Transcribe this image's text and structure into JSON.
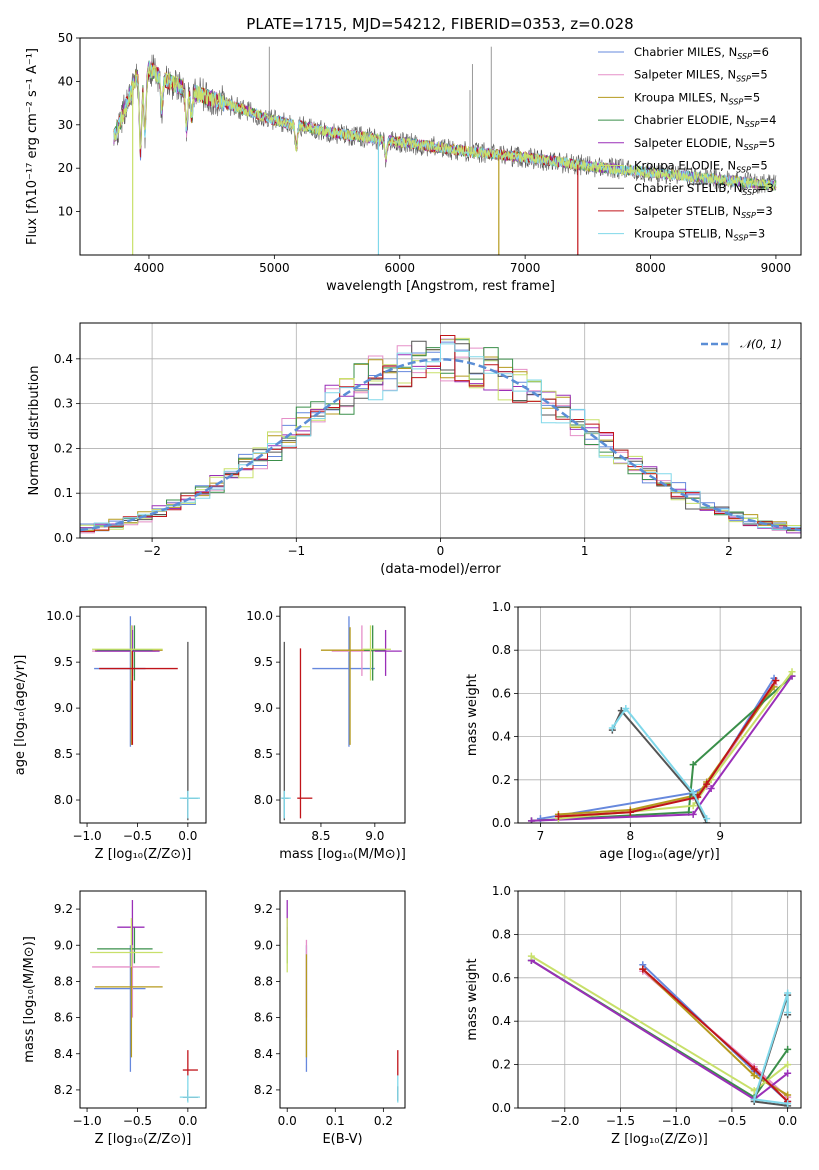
{
  "figure": {
    "title": "PLATE=1715, MJD=54212, FIBERID=0353, z=0.028"
  },
  "colors": [
    "#6688dd",
    "#e58fc8",
    "#b59a1e",
    "#3a8f4a",
    "#9a2fb8",
    "#c8e06a",
    "#555555",
    "#c0141a",
    "#80d8ea"
  ],
  "chart_data": [
    {
      "id": "spectrum",
      "type": "line",
      "title": "PLATE=1715, MJD=54212, FIBERID=0353, z=0.028",
      "xlabel": "wavelength [Angstrom, rest frame]",
      "ylabel": "Flux [fλ10⁻¹⁷ erg cm⁻² s⁻¹ A⁻¹]",
      "xlim": [
        3450,
        9200
      ],
      "ylim": [
        0,
        50
      ],
      "xticks": [
        4000,
        5000,
        6000,
        7000,
        8000,
        9000
      ],
      "yticks": [
        10,
        20,
        30,
        40,
        50
      ],
      "legend_position": "top-right",
      "continuum_x": [
        3720,
        3800,
        3900,
        4000,
        4100,
        4300,
        4500,
        4800,
        5000,
        5500,
        6000,
        6500,
        7000,
        7500,
        8000,
        8500,
        9000
      ],
      "continuum_y": [
        27,
        33,
        41,
        43,
        41,
        38,
        36,
        33,
        31,
        28,
        26,
        24,
        22.5,
        20.5,
        19,
        17.5,
        16
      ],
      "absorption_lines": [
        {
          "x": 3933,
          "depth": 18
        },
        {
          "x": 3968,
          "depth": 14
        },
        {
          "x": 4102,
          "depth": 7
        },
        {
          "x": 4300,
          "depth": 9
        },
        {
          "x": 4340,
          "depth": 6
        },
        {
          "x": 5175,
          "depth": 5
        },
        {
          "x": 5890,
          "depth": 4
        }
      ],
      "spikes": [
        {
          "x": 4960,
          "y": 48
        },
        {
          "x": 6560,
          "y": 38
        },
        {
          "x": 6580,
          "y": 44
        },
        {
          "x": 6730,
          "y": 48
        }
      ],
      "dropouts": [
        {
          "x": 3870,
          "series": 5
        },
        {
          "x": 5830,
          "series": 8
        },
        {
          "x": 6790,
          "series": 2
        },
        {
          "x": 7420,
          "series": 7
        }
      ],
      "series": [
        {
          "label": "Chabrier MILES, N",
          "ssp": "=6"
        },
        {
          "label": "Salpeter MILES, N",
          "ssp": "=5"
        },
        {
          "label": "Kroupa MILES, N",
          "ssp": "=5"
        },
        {
          "label": "Chabrier ELODIE, N",
          "ssp": "=4"
        },
        {
          "label": "Salpeter ELODIE, N",
          "ssp": "=5"
        },
        {
          "label": "Kroupa ELODIE, N",
          "ssp": "=5"
        },
        {
          "label": "Chabrier STELIB, N",
          "ssp": "=3"
        },
        {
          "label": "Salpeter STELIB, N",
          "ssp": "=3"
        },
        {
          "label": "Kroupa STELIB, N",
          "ssp": "=3"
        }
      ],
      "ssp_subscript": "SSP"
    },
    {
      "id": "residuals",
      "type": "line",
      "xlabel": "(data-model)/error",
      "ylabel": "Normed distribution",
      "xlim": [
        -2.5,
        2.5
      ],
      "ylim": [
        0,
        0.48
      ],
      "xticks": [
        -2,
        -1,
        0,
        1,
        2
      ],
      "yticks": [
        0.0,
        0.1,
        0.2,
        0.3,
        0.4
      ],
      "grid": true,
      "legend_position": "top-right",
      "gaussian_label": "𝒩(0, 1)",
      "bin_width": 0.1
    },
    {
      "id": "age-vs-Z",
      "type": "scatter",
      "xlabel": "Z [log₁₀(Z/Z⊙)]",
      "ylabel": "age  [log₁₀(age/yr)]",
      "xlim": [
        -1.07,
        0.18
      ],
      "ylim": [
        7.75,
        10.1
      ],
      "xticks": [
        -1.0,
        -0.5,
        0.0
      ],
      "yticks": [
        8.0,
        8.5,
        9.0,
        9.5,
        10.0
      ],
      "points": [
        {
          "s": 0,
          "x": -0.57,
          "y": 9.43,
          "xlo": -0.93,
          "xhi": -0.42,
          "ylo": 8.58,
          "yhi": 10.0
        },
        {
          "s": 1,
          "x": -0.55,
          "y": 9.62,
          "xlo": -0.95,
          "xhi": -0.32,
          "ylo": 9.35,
          "yhi": 9.9
        },
        {
          "s": 2,
          "x": -0.56,
          "y": 9.63,
          "xlo": -0.92,
          "xhi": -0.25,
          "ylo": 8.6,
          "yhi": 9.88
        },
        {
          "s": 3,
          "x": -0.53,
          "y": 9.63,
          "xlo": -0.9,
          "xhi": -0.35,
          "ylo": 9.3,
          "yhi": 9.9
        },
        {
          "s": 4,
          "x": -0.55,
          "y": 9.62,
          "xlo": -0.92,
          "xhi": -0.28,
          "ylo": 9.35,
          "yhi": 9.85
        },
        {
          "s": 5,
          "x": -0.56,
          "y": 9.64,
          "xlo": -0.95,
          "xhi": -0.25,
          "ylo": 9.3,
          "yhi": 9.9
        },
        {
          "s": 6,
          "x": 0.0,
          "y": 8.02,
          "xlo": -0.05,
          "xhi": 0.1,
          "ylo": 7.78,
          "yhi": 9.72
        },
        {
          "s": 7,
          "x": -0.55,
          "y": 9.43,
          "xlo": -0.88,
          "xhi": -0.1,
          "ylo": 8.6,
          "yhi": 9.62
        },
        {
          "s": 8,
          "x": 0.0,
          "y": 8.02,
          "xlo": -0.08,
          "xhi": 0.12,
          "ylo": 7.8,
          "yhi": 8.1
        }
      ]
    },
    {
      "id": "age-vs-mass",
      "type": "scatter",
      "xlabel": "mass [log₁₀(M/M⊙)]",
      "ylabel": "",
      "xlim": [
        8.12,
        9.28
      ],
      "ylim": [
        7.75,
        10.1
      ],
      "xticks": [
        8.5,
        9.0
      ],
      "yticks": [
        8.0,
        8.5,
        9.0,
        9.5,
        10.0
      ],
      "points": [
        {
          "s": 0,
          "x": 8.76,
          "y": 9.43,
          "xlo": 8.42,
          "xhi": 9.0,
          "ylo": 8.58,
          "yhi": 10.0
        },
        {
          "s": 1,
          "x": 8.88,
          "y": 9.62,
          "xlo": 8.6,
          "xhi": 9.0,
          "ylo": 9.35,
          "yhi": 9.9
        },
        {
          "s": 2,
          "x": 8.77,
          "y": 9.63,
          "xlo": 8.5,
          "xhi": 8.95,
          "ylo": 8.6,
          "yhi": 9.88
        },
        {
          "s": 3,
          "x": 8.98,
          "y": 9.63,
          "xlo": 8.9,
          "xhi": 9.1,
          "ylo": 9.3,
          "yhi": 9.9
        },
        {
          "s": 4,
          "x": 9.1,
          "y": 9.62,
          "xlo": 9.0,
          "xhi": 9.25,
          "ylo": 9.35,
          "yhi": 9.85
        },
        {
          "s": 5,
          "x": 8.96,
          "y": 9.64,
          "xlo": 8.88,
          "xhi": 9.15,
          "ylo": 9.3,
          "yhi": 9.9
        },
        {
          "s": 6,
          "x": 8.16,
          "y": 8.02,
          "xlo": 8.14,
          "xhi": 8.2,
          "ylo": 7.78,
          "yhi": 9.72
        },
        {
          "s": 7,
          "x": 8.31,
          "y": 8.02,
          "xlo": 8.28,
          "xhi": 8.42,
          "ylo": 7.8,
          "yhi": 9.65
        },
        {
          "s": 8,
          "x": 8.16,
          "y": 8.02,
          "xlo": 8.13,
          "xhi": 8.22,
          "ylo": 7.8,
          "yhi": 8.1
        }
      ]
    },
    {
      "id": "mass-weight-vs-age",
      "type": "line",
      "xlabel": "age  [log₁₀(age/yr)]",
      "ylabel": "mass weight",
      "xlim": [
        6.75,
        9.9
      ],
      "ylim": [
        0,
        1.0
      ],
      "xticks": [
        7,
        8,
        9
      ],
      "yticks": [
        0.0,
        0.2,
        0.4,
        0.6,
        0.8,
        1.0
      ],
      "grid": true,
      "series": [
        {
          "s": 0,
          "x": [
            7.0,
            8.7,
            8.85,
            9.6
          ],
          "y": [
            0.02,
            0.14,
            0.17,
            0.67
          ]
        },
        {
          "s": 1,
          "x": [
            7.2,
            8.0,
            8.7,
            8.85,
            9.6
          ],
          "y": [
            0.03,
            0.05,
            0.12,
            0.17,
            0.64
          ]
        },
        {
          "s": 2,
          "x": [
            7.2,
            8.0,
            8.75,
            8.85,
            9.6
          ],
          "y": [
            0.04,
            0.06,
            0.13,
            0.19,
            0.63
          ]
        },
        {
          "s": 3,
          "x": [
            6.9,
            8.65,
            8.7,
            9.8
          ],
          "y": [
            0.01,
            0.05,
            0.27,
            0.68
          ]
        },
        {
          "s": 4,
          "x": [
            6.9,
            8.7,
            8.9,
            9.8
          ],
          "y": [
            0.01,
            0.04,
            0.16,
            0.68
          ]
        },
        {
          "s": 5,
          "x": [
            7.2,
            8.7,
            8.9,
            9.8
          ],
          "y": [
            0.02,
            0.08,
            0.2,
            0.7
          ]
        },
        {
          "s": 6,
          "x": [
            7.8,
            7.9,
            8.7,
            8.85
          ],
          "y": [
            0.43,
            0.52,
            0.13,
            0.0
          ]
        },
        {
          "s": 7,
          "x": [
            7.2,
            8.0,
            8.75,
            8.85,
            9.62
          ],
          "y": [
            0.03,
            0.05,
            0.12,
            0.18,
            0.66
          ]
        },
        {
          "s": 8,
          "x": [
            7.8,
            7.95,
            8.7,
            8.85
          ],
          "y": [
            0.44,
            0.53,
            0.14,
            0.02
          ]
        }
      ]
    },
    {
      "id": "mass-vs-Z",
      "type": "scatter",
      "xlabel": "Z [log₁₀(Z/Z⊙)]",
      "ylabel": "mass [log₁₀(M/M⊙)]",
      "xlim": [
        -1.07,
        0.18
      ],
      "ylim": [
        8.1,
        9.3
      ],
      "xticks": [
        -1.0,
        -0.5,
        0.0
      ],
      "yticks": [
        8.2,
        8.4,
        8.6,
        8.8,
        9.0,
        9.2
      ],
      "points": [
        {
          "s": 0,
          "x": -0.57,
          "y": 8.76,
          "xlo": -0.93,
          "xhi": -0.42,
          "ylo": 8.3,
          "yhi": 9.0
        },
        {
          "s": 1,
          "x": -0.55,
          "y": 8.88,
          "xlo": -0.95,
          "xhi": -0.28,
          "ylo": 8.6,
          "yhi": 9.0
        },
        {
          "s": 2,
          "x": -0.56,
          "y": 8.77,
          "xlo": -0.92,
          "xhi": -0.25,
          "ylo": 8.38,
          "yhi": 8.95
        },
        {
          "s": 3,
          "x": -0.53,
          "y": 8.98,
          "xlo": -0.9,
          "xhi": -0.35,
          "ylo": 8.9,
          "yhi": 9.1
        },
        {
          "s": 4,
          "x": -0.55,
          "y": 9.1,
          "xlo": -0.7,
          "xhi": -0.43,
          "ylo": 9.0,
          "yhi": 9.25
        },
        {
          "s": 5,
          "x": -0.56,
          "y": 8.96,
          "xlo": -0.97,
          "xhi": -0.25,
          "ylo": 8.88,
          "yhi": 9.15
        },
        {
          "s": 6,
          "x": 0.0,
          "y": 8.16,
          "xlo": -0.05,
          "xhi": 0.1,
          "ylo": 8.14,
          "yhi": 8.2
        },
        {
          "s": 7,
          "x": 0.0,
          "y": 8.31,
          "xlo": -0.05,
          "xhi": 0.1,
          "ylo": 8.28,
          "yhi": 8.42
        },
        {
          "s": 8,
          "x": 0.0,
          "y": 8.16,
          "xlo": -0.08,
          "xhi": 0.12,
          "ylo": 8.13,
          "yhi": 8.28
        }
      ]
    },
    {
      "id": "mass-vs-ebv",
      "type": "scatter",
      "xlabel": "E(B-V)",
      "ylabel": "",
      "xlim": [
        -0.015,
        0.245
      ],
      "ylim": [
        8.1,
        9.3
      ],
      "xticks": [
        0.0,
        0.1,
        0.2
      ],
      "yticks": [
        8.2,
        8.4,
        8.6,
        8.8,
        9.0,
        9.2
      ],
      "points": [
        {
          "s": 0,
          "x": 0.04,
          "y": 8.76,
          "ylo": 8.3,
          "yhi": 9.0
        },
        {
          "s": 1,
          "x": 0.04,
          "y": 8.88,
          "ylo": 8.6,
          "yhi": 9.03
        },
        {
          "s": 2,
          "x": 0.04,
          "y": 8.77,
          "ylo": 8.38,
          "yhi": 8.95
        },
        {
          "s": 3,
          "x": 0.0,
          "y": 8.98,
          "ylo": 8.9,
          "yhi": 9.1
        },
        {
          "s": 4,
          "x": 0.0,
          "y": 9.1,
          "ylo": 9.0,
          "yhi": 9.25
        },
        {
          "s": 5,
          "x": 0.0,
          "y": 8.96,
          "ylo": 8.85,
          "yhi": 9.15
        },
        {
          "s": 6,
          "x": 0.23,
          "y": 8.16,
          "ylo": 8.14,
          "yhi": 8.22
        },
        {
          "s": 7,
          "x": 0.23,
          "y": 8.31,
          "ylo": 8.28,
          "yhi": 8.42
        },
        {
          "s": 8,
          "x": 0.23,
          "y": 8.16,
          "ylo": 8.13,
          "yhi": 8.28
        }
      ]
    },
    {
      "id": "mass-weight-vs-Z",
      "type": "line",
      "xlabel": "Z [log₁₀(Z/Z⊙)]",
      "ylabel": "mass weight",
      "xlim": [
        -2.42,
        0.12
      ],
      "ylim": [
        0,
        1.0
      ],
      "xticks": [
        -2.0,
        -1.5,
        -1.0,
        -0.5,
        0.0
      ],
      "yticks": [
        0.0,
        0.2,
        0.4,
        0.6,
        0.8,
        1.0
      ],
      "grid": true,
      "series": [
        {
          "s": 0,
          "x": [
            -1.3,
            -0.3,
            0.0
          ],
          "y": [
            0.66,
            0.17,
            0.03
          ]
        },
        {
          "s": 1,
          "x": [
            -1.3,
            -0.3,
            0.0
          ],
          "y": [
            0.63,
            0.19,
            0.05
          ]
        },
        {
          "s": 2,
          "x": [
            -1.3,
            -0.3,
            0.0
          ],
          "y": [
            0.64,
            0.15,
            0.06
          ]
        },
        {
          "s": 3,
          "x": [
            -2.3,
            -0.3,
            0.0
          ],
          "y": [
            0.68,
            0.05,
            0.27
          ]
        },
        {
          "s": 4,
          "x": [
            -2.3,
            -0.3,
            0.0
          ],
          "y": [
            0.68,
            0.04,
            0.16
          ]
        },
        {
          "s": 5,
          "x": [
            -2.3,
            -0.3,
            0.0
          ],
          "y": [
            0.7,
            0.08,
            0.2
          ]
        },
        {
          "s": 6,
          "x": [
            0.0,
            0.0,
            -0.3,
            0.0
          ],
          "y": [
            0.43,
            0.52,
            0.03,
            0.01
          ]
        },
        {
          "s": 7,
          "x": [
            -1.3,
            -0.3,
            0.0
          ],
          "y": [
            0.64,
            0.18,
            0.03
          ]
        },
        {
          "s": 8,
          "x": [
            0.0,
            0.0,
            -0.3,
            0.0
          ],
          "y": [
            0.44,
            0.53,
            0.04,
            0.02
          ]
        }
      ]
    }
  ]
}
